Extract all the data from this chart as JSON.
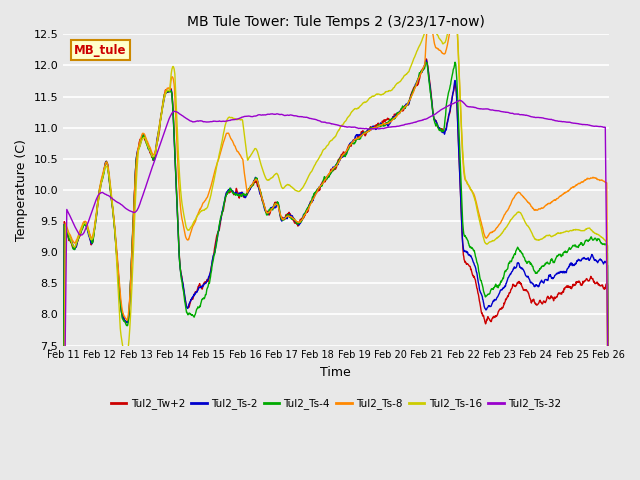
{
  "title": "MB Tule Tower: Tule Temps 2 (3/23/17-now)",
  "xlabel": "Time",
  "ylabel": "Temperature (C)",
  "ylim": [
    7.5,
    12.5
  ],
  "bg_color": "#e8e8e8",
  "series_colors": {
    "Tul2_Tw+2": "#cc0000",
    "Tul2_Ts-2": "#0000cc",
    "Tul2_Ts-4": "#00aa00",
    "Tul2_Ts-8": "#ff8800",
    "Tul2_Ts-16": "#cccc00",
    "Tul2_Ts-32": "#9900cc"
  },
  "xtick_labels": [
    "Feb 11",
    "Feb 12",
    "Feb 13",
    "Feb 14",
    "Feb 15",
    "Feb 16",
    "Feb 17",
    "Feb 18",
    "Feb 19",
    "Feb 20",
    "Feb 21",
    "Feb 22",
    "Feb 23",
    "Feb 24",
    "Feb 25",
    "Feb 26"
  ],
  "xtick_positions": [
    0,
    1,
    2,
    3,
    4,
    5,
    6,
    7,
    8,
    9,
    10,
    11,
    12,
    13,
    14,
    15
  ],
  "ytick_labels": [
    "7.5",
    "8.0",
    "8.5",
    "9.0",
    "9.5",
    "10.0",
    "10.5",
    "11.0",
    "11.5",
    "12.0",
    "12.5"
  ],
  "ytick_values": [
    7.5,
    8.0,
    8.5,
    9.0,
    9.5,
    10.0,
    10.5,
    11.0,
    11.5,
    12.0,
    12.5
  ],
  "legend_box_color": "#ffffcc",
  "legend_box_edge": "#cc8800",
  "legend_text": "MB_tule",
  "legend_text_color": "#cc0000"
}
